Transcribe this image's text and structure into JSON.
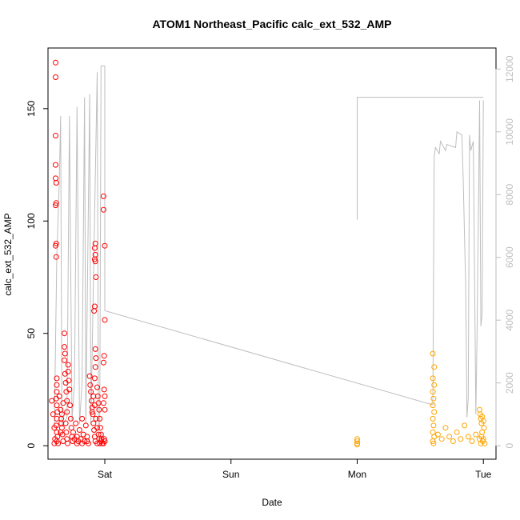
{
  "chart_data": {
    "type": "scatter",
    "title": "ATOM1 Northeast_Pacific calc_ext_532_AMP",
    "xlabel": "Date",
    "ylabel": "calc_ext_532_AMP",
    "x_ticks": [
      "Sat",
      "Sun",
      "Mon",
      "Tue"
    ],
    "y_ticks": [
      "0",
      "50",
      "100",
      "150"
    ],
    "y2_ticks": [
      "0",
      "2000",
      "4000",
      "6000",
      "8000",
      "10000",
      "12000"
    ],
    "xlim_days": [
      -0.45,
      3.1
    ],
    "ylim": [
      -6,
      177
    ],
    "y2lim": [
      -430,
      12670
    ],
    "grid": false,
    "colors": {
      "series1": "#ff0000",
      "series2": "#ffa500",
      "line": "#bebebe"
    },
    "series": [
      {
        "color": "#ff0000",
        "points": [
          [
            -0.39,
            170.5
          ],
          [
            -0.39,
            164
          ],
          [
            -0.39,
            138
          ],
          [
            -0.39,
            125
          ],
          [
            -0.39,
            119
          ],
          [
            -0.385,
            117
          ],
          [
            -0.385,
            108
          ],
          [
            -0.39,
            107
          ],
          [
            -0.385,
            90
          ],
          [
            -0.39,
            89
          ],
          [
            -0.385,
            84
          ],
          [
            -0.38,
            30
          ],
          [
            -0.38,
            27
          ],
          [
            -0.38,
            24
          ],
          [
            -0.385,
            21
          ],
          [
            -0.38,
            18
          ],
          [
            -0.375,
            15
          ],
          [
            -0.38,
            12
          ],
          [
            -0.385,
            9
          ],
          [
            -0.38,
            6
          ],
          [
            -0.375,
            4
          ],
          [
            -0.38,
            2
          ],
          [
            -0.37,
            1
          ],
          [
            -0.36,
            22
          ],
          [
            -0.35,
            16
          ],
          [
            -0.345,
            12
          ],
          [
            -0.34,
            8
          ],
          [
            -0.335,
            5
          ],
          [
            -0.33,
            2
          ],
          [
            -0.33,
            19
          ],
          [
            -0.34,
            14
          ],
          [
            -0.345,
            10
          ],
          [
            -0.35,
            6
          ],
          [
            -0.32,
            50
          ],
          [
            -0.32,
            44
          ],
          [
            -0.315,
            41
          ],
          [
            -0.32,
            38
          ],
          [
            -0.315,
            32
          ],
          [
            -0.31,
            28
          ],
          [
            -0.305,
            24
          ],
          [
            -0.3,
            20
          ],
          [
            -0.3,
            15
          ],
          [
            -0.31,
            10
          ],
          [
            -0.305,
            6
          ],
          [
            -0.3,
            3
          ],
          [
            -0.295,
            1
          ],
          [
            -0.29,
            36
          ],
          [
            -0.29,
            33
          ],
          [
            -0.285,
            29
          ],
          [
            -0.28,
            25
          ],
          [
            -0.275,
            18
          ],
          [
            -0.27,
            12
          ],
          [
            -0.265,
            8
          ],
          [
            -0.26,
            4
          ],
          [
            -0.255,
            2
          ],
          [
            -0.25,
            6
          ],
          [
            -0.24,
            3
          ],
          [
            -0.23,
            10
          ],
          [
            -0.22,
            4
          ],
          [
            -0.21,
            2
          ],
          [
            -0.2,
            7
          ],
          [
            -0.19,
            3
          ],
          [
            -0.18,
            12
          ],
          [
            -0.17,
            5
          ],
          [
            -0.16,
            2
          ],
          [
            -0.15,
            9
          ],
          [
            -0.14,
            4
          ],
          [
            -0.13,
            1
          ],
          [
            -0.12,
            31
          ],
          [
            -0.115,
            27
          ],
          [
            -0.11,
            24
          ],
          [
            -0.105,
            20
          ],
          [
            -0.1,
            17
          ],
          [
            -0.095,
            14
          ],
          [
            -0.09,
            10
          ],
          [
            -0.085,
            7
          ],
          [
            -0.08,
            4
          ],
          [
            -0.075,
            2
          ],
          [
            -0.1,
            15
          ],
          [
            -0.09,
            22
          ],
          [
            -0.08,
            18
          ],
          [
            -0.07,
            12
          ],
          [
            -0.06,
            8
          ],
          [
            -0.05,
            5
          ],
          [
            -0.045,
            3
          ],
          [
            -0.04,
            1
          ],
          [
            -0.085,
            60
          ],
          [
            -0.08,
            62
          ],
          [
            -0.075,
            90
          ],
          [
            -0.08,
            88
          ],
          [
            -0.075,
            85
          ],
          [
            -0.08,
            83
          ],
          [
            -0.075,
            82
          ],
          [
            -0.07,
            75
          ],
          [
            -0.075,
            43
          ],
          [
            -0.07,
            39
          ],
          [
            -0.075,
            35
          ],
          [
            -0.08,
            30
          ],
          [
            -0.06,
            26
          ],
          [
            -0.055,
            22
          ],
          [
            -0.05,
            19
          ],
          [
            -0.045,
            16
          ],
          [
            -0.04,
            12
          ],
          [
            -0.035,
            8
          ],
          [
            -0.03,
            5
          ],
          [
            -0.025,
            3
          ],
          [
            -0.02,
            1
          ],
          [
            -0.01,
            111
          ],
          [
            -0.01,
            105
          ],
          [
            0.0,
            89
          ],
          [
            0.0,
            56
          ],
          [
            -0.005,
            40
          ],
          [
            -0.01,
            37
          ],
          [
            -0.005,
            25
          ],
          [
            0.0,
            22
          ],
          [
            -0.01,
            19
          ],
          [
            0.0,
            16
          ],
          [
            -0.005,
            3
          ],
          [
            0.0,
            2
          ],
          [
            -0.01,
            1
          ],
          [
            -0.42,
            20
          ],
          [
            -0.41,
            14
          ],
          [
            -0.4,
            8
          ],
          [
            -0.395,
            3
          ],
          [
            -0.4,
            1
          ],
          [
            -0.22,
            1
          ],
          [
            -0.18,
            1
          ],
          [
            -0.14,
            2
          ],
          [
            -0.06,
            1
          ],
          [
            -0.03,
            2
          ]
        ]
      },
      {
        "color": "#ffa500",
        "points": [
          [
            2.0,
            3
          ],
          [
            2.0,
            2
          ],
          [
            2.0,
            1
          ],
          [
            2.0,
            0.5
          ],
          [
            2.6,
            41
          ],
          [
            2.61,
            35
          ],
          [
            2.6,
            30
          ],
          [
            2.61,
            27
          ],
          [
            2.6,
            24
          ],
          [
            2.605,
            21
          ],
          [
            2.6,
            18
          ],
          [
            2.61,
            15
          ],
          [
            2.6,
            12
          ],
          [
            2.605,
            9
          ],
          [
            2.6,
            6
          ],
          [
            2.61,
            4
          ],
          [
            2.6,
            2
          ],
          [
            2.605,
            1
          ],
          [
            2.64,
            5
          ],
          [
            2.67,
            3
          ],
          [
            2.7,
            8
          ],
          [
            2.73,
            4
          ],
          [
            2.76,
            2
          ],
          [
            2.79,
            6
          ],
          [
            2.82,
            3
          ],
          [
            2.85,
            9
          ],
          [
            2.88,
            4
          ],
          [
            2.91,
            2
          ],
          [
            2.94,
            5
          ],
          [
            2.97,
            3
          ],
          [
            2.97,
            16
          ],
          [
            2.975,
            14
          ],
          [
            2.98,
            12
          ],
          [
            2.985,
            10
          ],
          [
            2.99,
            13
          ],
          [
            3.0,
            11
          ],
          [
            3.005,
            8
          ],
          [
            2.99,
            6
          ],
          [
            2.985,
            4
          ],
          [
            3.0,
            3
          ],
          [
            2.995,
            2
          ],
          [
            3.01,
            1
          ],
          [
            2.98,
            1
          ]
        ]
      }
    ],
    "line_right_axis": {
      "color": "#bebebe",
      "points": [
        [
          -0.4,
          600
        ],
        [
          -0.38,
          6000
        ],
        [
          -0.36,
          8500
        ],
        [
          -0.35,
          10500
        ],
        [
          -0.34,
          600
        ],
        [
          -0.3,
          900
        ],
        [
          -0.28,
          10500
        ],
        [
          -0.26,
          800
        ],
        [
          -0.24,
          2000
        ],
        [
          -0.22,
          10800
        ],
        [
          -0.2,
          700
        ],
        [
          -0.18,
          2000
        ],
        [
          -0.16,
          11100
        ],
        [
          -0.15,
          700
        ],
        [
          -0.12,
          11200
        ],
        [
          -0.11,
          700
        ],
        [
          -0.06,
          11900
        ],
        [
          -0.05,
          600
        ],
        [
          -0.04,
          700
        ],
        [
          -0.03,
          12100
        ],
        [
          -0.02,
          12100
        ],
        [
          0.0,
          12100
        ],
        [
          0.0,
          4300
        ],
        [
          2.6,
          1300
        ],
        [
          2.61,
          9200
        ],
        [
          2.62,
          9500
        ],
        [
          2.65,
          9300
        ],
        [
          2.66,
          9700
        ],
        [
          2.7,
          9400
        ],
        [
          2.71,
          9600
        ],
        [
          2.78,
          9500
        ],
        [
          2.79,
          10000
        ],
        [
          2.83,
          9900
        ],
        [
          2.84,
          8500
        ],
        [
          2.86,
          5100
        ],
        [
          2.87,
          900
        ],
        [
          2.88,
          1500
        ],
        [
          2.89,
          9900
        ],
        [
          2.9,
          9400
        ],
        [
          2.92,
          9700
        ],
        [
          2.93,
          5500
        ],
        [
          2.94,
          1000
        ],
        [
          2.95,
          3500
        ],
        [
          2.97,
          11000
        ],
        [
          2.98,
          3800
        ],
        [
          2.99,
          4200
        ],
        [
          3.0,
          11000
        ]
      ]
    },
    "line2_right_axis": {
      "color": "#bebebe",
      "points": [
        [
          2.0,
          7200
        ],
        [
          2.0,
          11100
        ],
        [
          3.0,
          11100
        ]
      ]
    }
  }
}
